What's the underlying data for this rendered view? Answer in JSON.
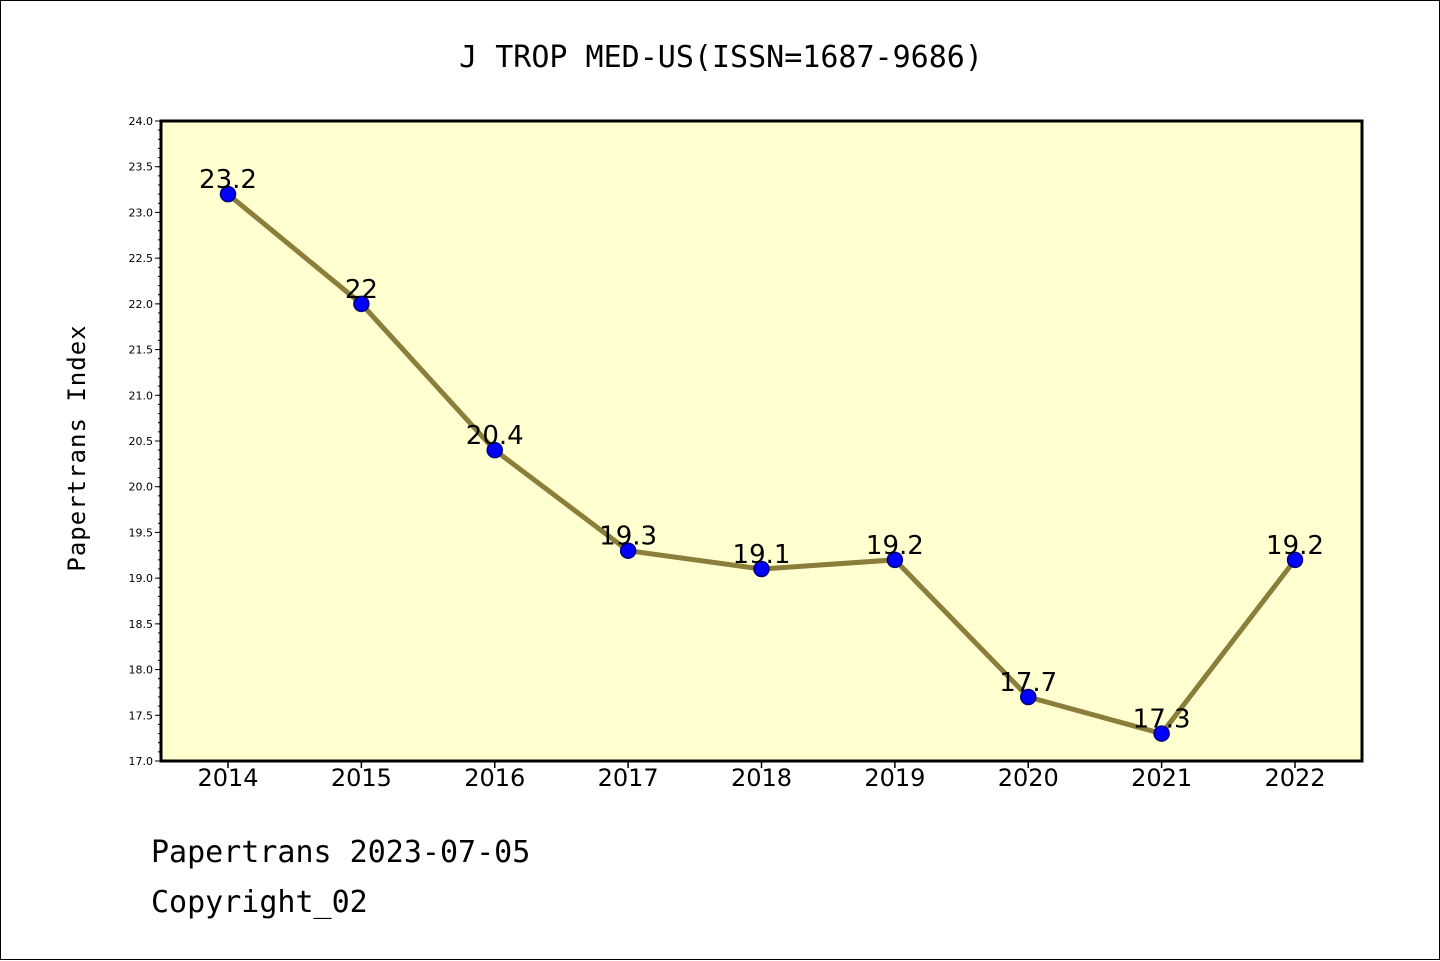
{
  "chart_data": {
    "type": "line",
    "title": "J TROP MED-US(ISSN=1687-9686)",
    "ylabel": "Papertrans Index",
    "xlabel": "",
    "categories": [
      "2014",
      "2015",
      "2016",
      "2017",
      "2018",
      "2019",
      "2020",
      "2021",
      "2022"
    ],
    "series": [
      {
        "values": [
          23.2,
          22,
          20.4,
          19.3,
          19.1,
          19.2,
          17.7,
          17.3,
          19.2
        ]
      }
    ],
    "data_labels": [
      "23.2",
      "22",
      "20.4",
      "19.3",
      "19.1",
      "19.2",
      "17.7",
      "17.3",
      "19.2"
    ],
    "ylim": [
      17.0,
      24.0
    ],
    "yticks": [
      "17.0",
      "17.5",
      "18.0",
      "18.5",
      "19.0",
      "19.5",
      "20.0",
      "20.5",
      "21.0",
      "21.5",
      "22.0",
      "22.5",
      "23.0",
      "23.5",
      "24.0"
    ],
    "grid": false,
    "colors": {
      "plot_background": "#ffffd0",
      "line": "#8b7d3a",
      "marker_fill": "#0000ff",
      "marker_edge": "#000080"
    }
  },
  "footer": {
    "line1": "Papertrans 2023-07-05",
    "line2": "Copyright_02"
  }
}
